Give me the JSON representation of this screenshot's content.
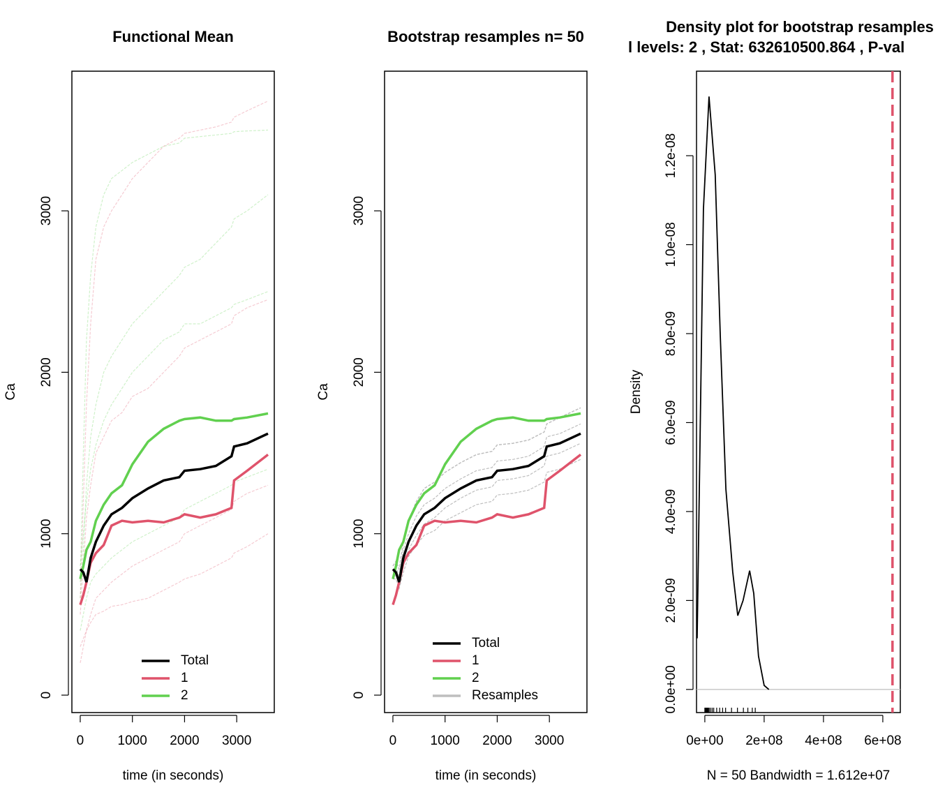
{
  "chart_data": [
    {
      "type": "line",
      "title": "Functional Mean",
      "xlabel": "time (in seconds)",
      "ylabel": "Ca",
      "x": [
        0,
        60,
        120,
        200,
        300,
        450,
        600,
        800,
        1000,
        1300,
        1600,
        1900,
        2000,
        2300,
        2600,
        2900,
        2950,
        3200,
        3600
      ],
      "xlim": [
        -160,
        3720
      ],
      "xticks": [
        0,
        1000,
        2000,
        3000
      ],
      "ylim": [
        -108,
        3865
      ],
      "yticks": [
        0,
        1000,
        2000,
        3000
      ],
      "legend": "bottom",
      "series": [
        {
          "name": "Total",
          "color": "#000000",
          "values": [
            780,
            760,
            700,
            850,
            950,
            1050,
            1120,
            1160,
            1220,
            1280,
            1330,
            1350,
            1390,
            1400,
            1420,
            1480,
            1540,
            1560,
            1620
          ]
        },
        {
          "name": "1",
          "color": "#DF536B",
          "values": [
            560,
            620,
            700,
            820,
            880,
            930,
            1050,
            1080,
            1070,
            1080,
            1070,
            1100,
            1120,
            1100,
            1120,
            1160,
            1330,
            1390,
            1490
          ]
        },
        {
          "name": "2",
          "color": "#61D04F",
          "values": [
            720,
            800,
            900,
            950,
            1080,
            1180,
            1250,
            1300,
            1430,
            1570,
            1650,
            1700,
            1710,
            1720,
            1700,
            1700,
            1710,
            1720,
            1745
          ]
        }
      ],
      "traces": [
        {
          "color": "#61D04F",
          "values": [
            700,
            1500,
            2200,
            2600,
            2900,
            3100,
            3200,
            3250,
            3300,
            3350,
            3400,
            3420,
            3450,
            3460,
            3470,
            3480,
            3490,
            3495,
            3500
          ]
        },
        {
          "color": "#DF536B",
          "values": [
            600,
            1200,
            1800,
            2300,
            2700,
            2900,
            3000,
            3100,
            3200,
            3300,
            3400,
            3450,
            3480,
            3500,
            3520,
            3550,
            3580,
            3620,
            3680
          ]
        },
        {
          "color": "#61D04F",
          "values": [
            600,
            900,
            1300,
            1600,
            1800,
            2000,
            2100,
            2200,
            2300,
            2400,
            2500,
            2600,
            2650,
            2700,
            2800,
            2900,
            2950,
            3000,
            3100
          ]
        },
        {
          "color": "#DF536B",
          "values": [
            500,
            800,
            1100,
            1300,
            1500,
            1600,
            1700,
            1750,
            1850,
            1900,
            2000,
            2100,
            2150,
            2200,
            2250,
            2300,
            2350,
            2400,
            2450
          ]
        },
        {
          "color": "#61D04F",
          "values": [
            400,
            500,
            600,
            700,
            750,
            800,
            850,
            900,
            950,
            1000,
            1050,
            1100,
            1150,
            1200,
            1250,
            1300,
            1320,
            1350,
            1400
          ]
        },
        {
          "color": "#DF536B",
          "values": [
            300,
            350,
            400,
            450,
            500,
            520,
            550,
            560,
            580,
            600,
            650,
            700,
            720,
            750,
            800,
            850,
            880,
            920,
            1000
          ]
        },
        {
          "color": "#61D04F",
          "values": [
            800,
            1000,
            1200,
            1400,
            1550,
            1700,
            1800,
            1900,
            2000,
            2100,
            2200,
            2250,
            2300,
            2300,
            2350,
            2400,
            2420,
            2450,
            2500
          ]
        },
        {
          "color": "#DF536B",
          "values": [
            200,
            300,
            400,
            500,
            600,
            650,
            700,
            750,
            800,
            850,
            900,
            950,
            1000,
            1050,
            1100,
            1150,
            1200,
            1250,
            1300
          ]
        }
      ],
      "trace_opacity": 0.3
    },
    {
      "type": "line",
      "title": "Bootstrap resamples n= 50",
      "xlabel": "time (in seconds)",
      "ylabel": "Ca",
      "x": [
        0,
        60,
        120,
        200,
        300,
        450,
        600,
        800,
        1000,
        1300,
        1600,
        1900,
        2000,
        2300,
        2600,
        2900,
        2950,
        3200,
        3600
      ],
      "xlim": [
        -160,
        3720
      ],
      "xticks": [
        0,
        1000,
        2000,
        3000
      ],
      "ylim": [
        -108,
        3865
      ],
      "yticks": [
        0,
        1000,
        2000,
        3000
      ],
      "legend": "bottom",
      "series": [
        {
          "name": "Total",
          "color": "#000000",
          "values": [
            780,
            760,
            700,
            850,
            950,
            1050,
            1120,
            1160,
            1220,
            1280,
            1330,
            1350,
            1390,
            1400,
            1420,
            1480,
            1540,
            1560,
            1620
          ]
        },
        {
          "name": "1",
          "color": "#DF536B",
          "values": [
            560,
            620,
            700,
            820,
            880,
            930,
            1050,
            1080,
            1070,
            1080,
            1070,
            1100,
            1120,
            1100,
            1120,
            1160,
            1330,
            1390,
            1490
          ]
        },
        {
          "name": "2",
          "color": "#61D04F",
          "values": [
            720,
            800,
            900,
            950,
            1080,
            1180,
            1250,
            1300,
            1430,
            1570,
            1650,
            1700,
            1710,
            1720,
            1700,
            1700,
            1710,
            1720,
            1745
          ]
        },
        {
          "name": "Resamples",
          "color": "#BEBEBE",
          "values": [
            800,
            830,
            780,
            950,
            1080,
            1200,
            1280,
            1320,
            1380,
            1440,
            1490,
            1510,
            1550,
            1560,
            1580,
            1630,
            1680,
            1720,
            1780
          ]
        }
      ],
      "traces": [
        {
          "color": "#BEBEBE",
          "values": [
            760,
            790,
            740,
            900,
            1000,
            1110,
            1180,
            1220,
            1280,
            1340,
            1390,
            1410,
            1450,
            1460,
            1480,
            1540,
            1600,
            1620,
            1680
          ]
        },
        {
          "color": "#BEBEBE",
          "values": [
            740,
            740,
            680,
            800,
            900,
            990,
            1060,
            1100,
            1160,
            1220,
            1270,
            1290,
            1330,
            1340,
            1360,
            1420,
            1480,
            1500,
            1560
          ]
        },
        {
          "color": "#BEBEBE",
          "values": [
            720,
            720,
            660,
            760,
            860,
            930,
            990,
            1020,
            1080,
            1130,
            1180,
            1200,
            1240,
            1250,
            1270,
            1320,
            1380,
            1400,
            1460
          ]
        }
      ],
      "trace_opacity": 1
    },
    {
      "type": "density",
      "title": "Density plot for bootstrap resamples",
      "subtitle": "l levels: 2 , Stat: 632610500.864 , P-val",
      "xlabel": "N = 50   Bandwidth = 1.612e+07",
      "ylabel": "Density",
      "x": [
        -26000000,
        -4700000,
        14000000,
        35000000,
        52000000,
        71000000,
        94000000,
        111000000,
        129000000,
        151000000,
        165000000,
        181000000,
        200000000,
        216000000
      ],
      "values": [
        1.15e-09,
        1.08e-08,
        1.333e-08,
        1.157e-08,
        7.97e-09,
        4.5e-09,
        2.64e-09,
        1.66e-09,
        2e-09,
        2.67e-09,
        2.16e-09,
        7.5e-10,
        9e-11,
        0
      ],
      "color": "#000000",
      "xlim": [
        -28000000,
        659000000
      ],
      "xticks": [
        {
          "value": 0,
          "label": "0e+00"
        },
        {
          "value": 200000000,
          "label": "2e+08"
        },
        {
          "value": 400000000,
          "label": "4e+08"
        },
        {
          "value": 600000000,
          "label": "6e+08"
        }
      ],
      "ylim": [
        -5.2e-10,
        1.39e-08
      ],
      "yticks": [
        {
          "value": 0,
          "label": "0.0e+00"
        },
        {
          "value": 2e-09,
          "label": "2.0e-09"
        },
        {
          "value": 4e-09,
          "label": "4.0e-09"
        },
        {
          "value": 6e-09,
          "label": "6.0e-09"
        },
        {
          "value": 8e-09,
          "label": "8.0e-09"
        },
        {
          "value": 1e-08,
          "label": "1.0e-08"
        },
        {
          "value": 1.2e-08,
          "label": "1.2e-08"
        }
      ],
      "rug": [
        0,
        2000000,
        4000000,
        6000000,
        8000000,
        10000000,
        12000000,
        15000000,
        20000000,
        25000000,
        30000000,
        40000000,
        50000000,
        60000000,
        70000000,
        90000000,
        110000000,
        130000000,
        145000000,
        160000000,
        170000000
      ],
      "stat_line": {
        "value": 632610500.864,
        "color": "#DF536B"
      }
    }
  ]
}
